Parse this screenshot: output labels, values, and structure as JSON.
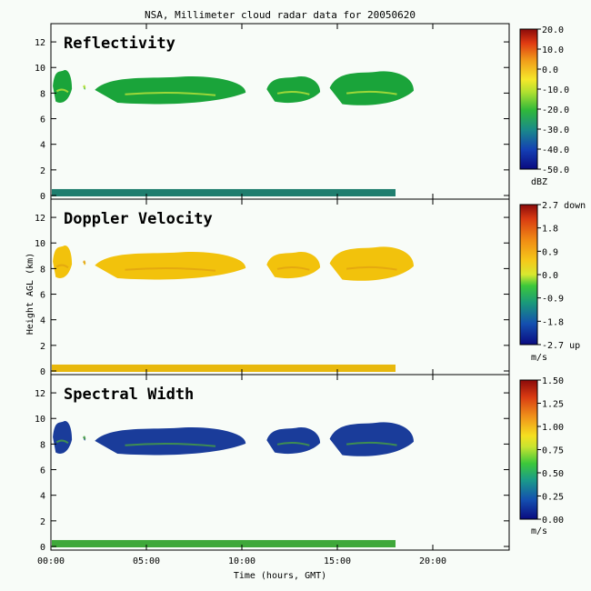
{
  "chart_data": {
    "type": "heatmap",
    "title": "NSA, Millimeter cloud radar data for 20050620",
    "xlabel": "Time (hours, GMT)",
    "ylabel": "Height AGL (km)",
    "xlim": [
      0,
      24
    ],
    "ylim": [
      0,
      13
    ],
    "x_ticks": [
      0,
      5,
      10,
      15,
      20
    ],
    "x_tick_labels": [
      "00:00",
      "05:00",
      "10:00",
      "15:00",
      "20:00"
    ],
    "y_ticks": [
      0,
      2,
      4,
      6,
      8,
      10,
      12
    ],
    "y_tick_labels": [
      "0",
      "2",
      "4",
      "6",
      "8",
      "10",
      "12"
    ],
    "cloud_segments": [
      {
        "t_start": 0.1,
        "t_end": 1.1,
        "base_km": 7.2,
        "top_km": 9.9
      },
      {
        "t_start": 1.7,
        "t_end": 1.8,
        "base_km": 8.3,
        "top_km": 8.7
      },
      {
        "t_start": 2.3,
        "t_end": 10.2,
        "base_km": 7.1,
        "top_km": 9.4
      },
      {
        "t_start": 11.3,
        "t_end": 14.1,
        "base_km": 7.2,
        "top_km": 9.4
      },
      {
        "t_start": 14.6,
        "t_end": 19.0,
        "base_km": 7.0,
        "top_km": 9.8
      }
    ],
    "surface_layer": {
      "t_start": 0,
      "t_end": 18.0,
      "top_km": 0.5
    },
    "panels": [
      {
        "name": "Reflectivity",
        "unit": "dBZ",
        "colorbar_min": -50,
        "colorbar_max": 20,
        "colorbar_labels": [
          "20.0",
          "10.0",
          "0.0",
          "-10.0",
          "-20.0",
          "-30.0",
          "-40.0",
          "-50.0"
        ],
        "cloud_color": "#1aa43a",
        "cloud_highlight": "#c8e83a",
        "surface_color": "#1f7e6e"
      },
      {
        "name": "Doppler Velocity",
        "unit": "m/s",
        "colorbar_min": -2.7,
        "colorbar_max": 2.7,
        "colorbar_labels": [
          "2.7 down",
          "1.8",
          "0.9",
          "0.0",
          "-0.9",
          "-1.8",
          "-2.7 up"
        ],
        "cloud_color": "#f2c20c",
        "cloud_highlight": "#e0a010",
        "surface_color": "#e8b80c"
      },
      {
        "name": "Spectral Width",
        "unit": "m/s",
        "colorbar_min": 0,
        "colorbar_max": 1.5,
        "colorbar_labels": [
          "1.50",
          "1.25",
          "1.00",
          "0.75",
          "0.50",
          "0.25",
          "0.00"
        ],
        "cloud_color": "#1a3c9a",
        "cloud_highlight": "#4ca83a",
        "surface_color": "#3fa83a"
      }
    ]
  }
}
